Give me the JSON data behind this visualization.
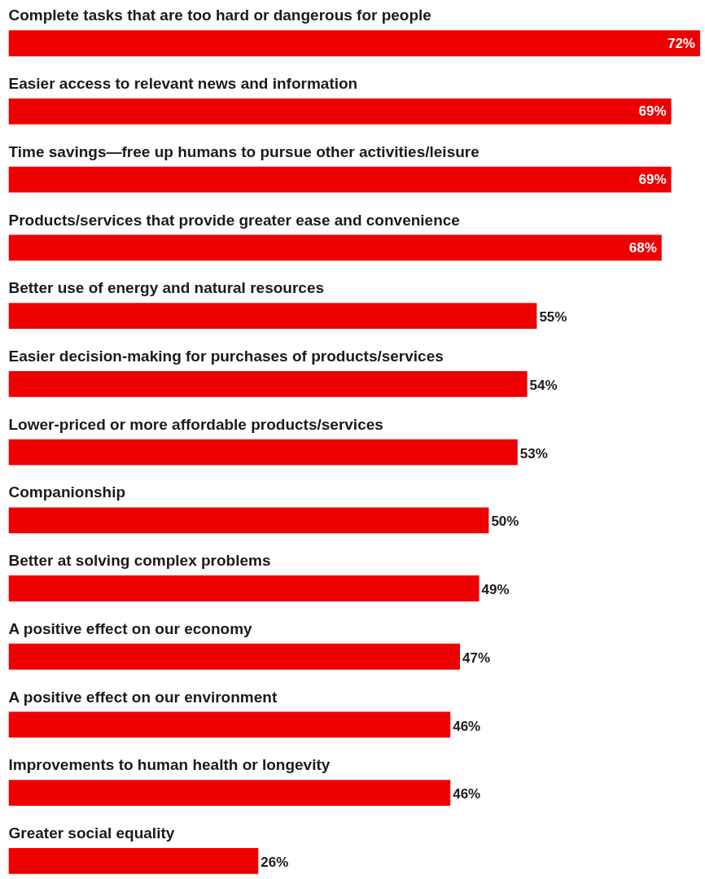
{
  "chart_data": {
    "type": "bar",
    "orientation": "horizontal",
    "categories": [
      "Complete tasks that are too hard or dangerous for people",
      "Easier access to relevant news and information",
      "Time savings—free up humans to pursue other activities/leisure",
      "Products/services that provide greater ease and convenience",
      "Better use of energy and natural resources",
      "Easier decision-making for purchases of products/services",
      "Lower-priced or more affordable products/services",
      "Companionship",
      "Better at solving complex problems",
      "A positive effect on our economy",
      "A positive effect on our environment",
      "Improvements to human health or longevity",
      "Greater social equality"
    ],
    "values": [
      72,
      69,
      69,
      68,
      55,
      54,
      53,
      50,
      49,
      47,
      46,
      46,
      26
    ],
    "value_labels": [
      "72%",
      "69%",
      "69%",
      "68%",
      "55%",
      "54%",
      "53%",
      "50%",
      "49%",
      "47%",
      "46%",
      "46%",
      "26%"
    ],
    "color": "#ee0000"
  }
}
